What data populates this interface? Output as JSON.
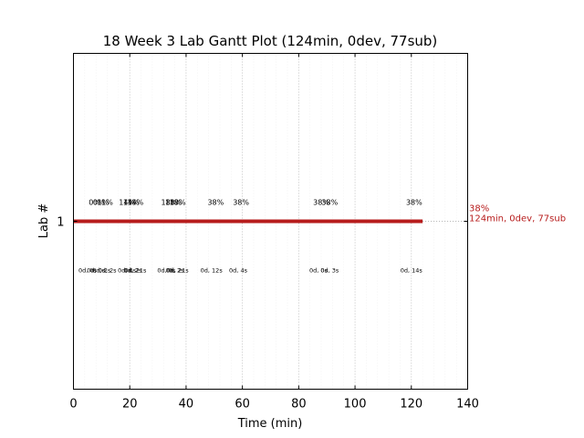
{
  "chart_data": {
    "type": "gantt",
    "title": "18 Week 3 Lab Gantt Plot (124min, 0dev, 77sub)",
    "xlabel": "Time (min)",
    "ylabel": "Lab #",
    "xlim": [
      0,
      140
    ],
    "ylim": [
      0,
      2
    ],
    "x_ticks": [
      0,
      20,
      40,
      60,
      80,
      100,
      120,
      140
    ],
    "x_tick_labels": [
      "0",
      "20",
      "40",
      "60",
      "80",
      "100",
      "120",
      "140"
    ],
    "y_ticks": [
      1
    ],
    "y_tick_labels": [
      "1"
    ],
    "grid": true,
    "bars": [
      {
        "lab": 1,
        "start": 0,
        "end": 124,
        "color": "#b71c1c"
      }
    ],
    "extension": {
      "lab": 1,
      "start": 124,
      "end": 140
    },
    "end_label": {
      "lab": 1,
      "x": 124,
      "lines": [
        "38%",
        "124min, 0dev, 77sub"
      ],
      "color": "#b71c1c"
    },
    "percent_labels": [
      {
        "x": 7.5,
        "text": "0%"
      },
      {
        "x": 9,
        "text": "0%"
      },
      {
        "x": 10.5,
        "text": "1%"
      },
      {
        "x": 12,
        "text": "1%"
      },
      {
        "x": 19,
        "text": "14%"
      },
      {
        "x": 20.5,
        "text": "14%"
      },
      {
        "x": 22,
        "text": "14%"
      },
      {
        "x": 34,
        "text": "18%"
      },
      {
        "x": 35.5,
        "text": "18%"
      },
      {
        "x": 37,
        "text": "18%"
      },
      {
        "x": 50.5,
        "text": "38%"
      },
      {
        "x": 59.5,
        "text": "38%"
      },
      {
        "x": 88,
        "text": "38%"
      },
      {
        "x": 91,
        "text": "38%"
      },
      {
        "x": 121,
        "text": "38%"
      }
    ],
    "time_labels": [
      {
        "x": 5,
        "text": "0d, 0s"
      },
      {
        "x": 8,
        "text": "0d, 0s"
      },
      {
        "x": 10,
        "text": "0d, 2s"
      },
      {
        "x": 12,
        "text": "0d, 2s"
      },
      {
        "x": 19,
        "text": "0d, 0s"
      },
      {
        "x": 21,
        "text": "0d, 2s"
      },
      {
        "x": 22,
        "text": "0d, 21s"
      },
      {
        "x": 33,
        "text": "0d, 0s"
      },
      {
        "x": 36,
        "text": "0d, 2s"
      },
      {
        "x": 37,
        "text": "0d, 21s"
      },
      {
        "x": 49,
        "text": "0d, 12s"
      },
      {
        "x": 58.5,
        "text": "0d, 4s"
      },
      {
        "x": 87,
        "text": "0d, 0s"
      },
      {
        "x": 91,
        "text": "0d, 3s"
      },
      {
        "x": 120,
        "text": "0d, 14s"
      }
    ]
  }
}
